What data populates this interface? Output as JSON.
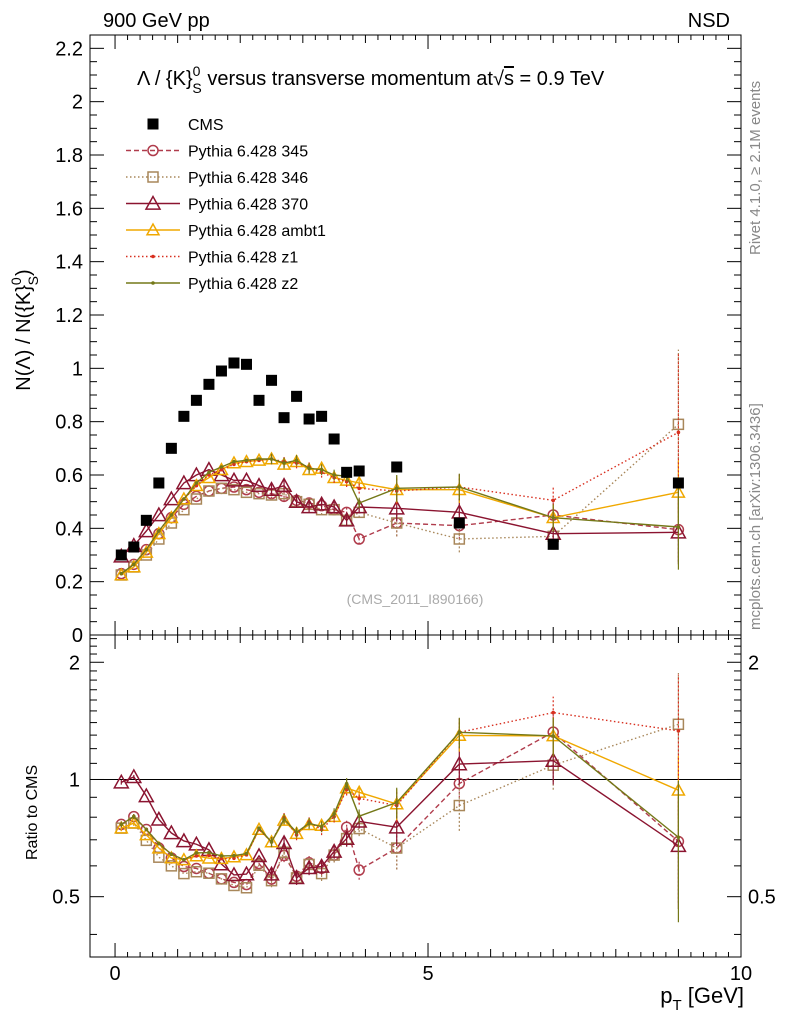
{
  "header": {
    "left": "900 GeV pp",
    "right": "NSD"
  },
  "side_labels": {
    "rivet": "Rivet 4.1.0, ≥ 2.1M events",
    "mcplots": "mcplots.cern.ch [arXiv:1306.3436]"
  },
  "colors": {
    "cms": "#000000",
    "p345": "#b03c4c",
    "p346": "#a8875a",
    "p370": "#8b1430",
    "ambt1": "#f0a800",
    "z1": "#d83020",
    "z2": "#747818"
  },
  "chart_data": {
    "type": "scatter",
    "title": "Λ / {K}⁰ₛ versus transverse momentum at √s = 0.9 TeV",
    "title_parts": {
      "pre": "Λ / {K}",
      "sup": "0",
      "sub": "S",
      "mid": " versus transverse momentum at",
      "rad": "s",
      "post": " = 0.9 TeV"
    },
    "ylabel_main": "N(Λ)  /  N({K}⁰ₛ)",
    "ylabel_main_parts": {
      "pre": "N(Λ)  /  N({K}",
      "sup": "0",
      "sub": "S",
      "post": ")"
    },
    "ylabel_ratio": "Ratio to CMS",
    "xlabel": "p_T [GeV]",
    "xlabel_parts": {
      "pre": "p",
      "sub": "T",
      "post": " [GeV]"
    },
    "watermark": "(CMS_2011_I890166)",
    "xlim": [
      -0.4,
      10
    ],
    "ylim_main": [
      0,
      2.25
    ],
    "ylim_ratio": [
      0.35,
      2.35
    ],
    "ratio_log": true,
    "x_ticks": [
      "0",
      "5",
      "10"
    ],
    "y_ticks_main": [
      "0",
      "0.2",
      "0.4",
      "0.6",
      "0.8",
      "1",
      "1.2",
      "1.4",
      "1.6",
      "1.8",
      "2",
      "2.2"
    ],
    "y_ticks_ratio": [
      "0.5",
      "1",
      "2"
    ],
    "y_ticks_ratio_right": [
      "0.5",
      "2"
    ],
    "x": [
      0.1,
      0.3,
      0.5,
      0.7,
      0.9,
      1.1,
      1.3,
      1.5,
      1.7,
      1.9,
      2.1,
      2.3,
      2.5,
      2.7,
      2.9,
      3.1,
      3.3,
      3.5,
      3.7,
      3.9,
      4.5,
      5.5,
      7.0,
      9.0
    ],
    "series": [
      {
        "key": "cms",
        "name": "CMS",
        "marker": "square_filled",
        "dash": "none",
        "values": [
          0.3,
          0.33,
          0.43,
          0.57,
          0.7,
          0.82,
          0.88,
          0.94,
          0.99,
          1.02,
          1.015,
          0.88,
          0.955,
          0.815,
          0.895,
          0.81,
          0.82,
          0.735,
          0.61,
          0.615,
          0.63,
          0.42,
          0.34,
          0.57
        ]
      },
      {
        "key": "p345",
        "name": "Pythia 6.428 345",
        "marker": "circle_open",
        "dash": "5,3",
        "values": [
          0.23,
          0.265,
          0.32,
          0.38,
          0.44,
          0.49,
          0.52,
          0.54,
          0.55,
          0.555,
          0.545,
          0.535,
          0.53,
          0.52,
          0.505,
          0.495,
          0.485,
          0.47,
          0.46,
          0.36,
          0.42,
          0.41,
          0.45,
          0.395
        ]
      },
      {
        "key": "p346",
        "name": "Pythia 6.428 346",
        "marker": "square_open",
        "dash": "1.5,2.5",
        "values": [
          0.225,
          0.255,
          0.3,
          0.36,
          0.42,
          0.47,
          0.51,
          0.54,
          0.55,
          0.545,
          0.535,
          0.53,
          0.525,
          0.53,
          0.5,
          0.49,
          0.47,
          0.47,
          0.43,
          0.46,
          0.42,
          0.36,
          0.37,
          0.79
        ]
      },
      {
        "key": "p370",
        "name": "Pythia 6.428 370",
        "marker": "triangle_open",
        "dash": "none",
        "values": [
          0.295,
          0.335,
          0.39,
          0.45,
          0.51,
          0.57,
          0.6,
          0.62,
          0.6,
          0.58,
          0.58,
          0.56,
          0.545,
          0.56,
          0.5,
          0.48,
          0.49,
          0.48,
          0.43,
          0.48,
          0.475,
          0.46,
          0.38,
          0.385
        ]
      },
      {
        "key": "ambt1",
        "name": "Pythia 6.428 ambt1",
        "marker": "triangle_open",
        "dash": "none",
        "values": [
          0.225,
          0.255,
          0.31,
          0.38,
          0.44,
          0.51,
          0.56,
          0.59,
          0.62,
          0.645,
          0.65,
          0.655,
          0.66,
          0.64,
          0.65,
          0.62,
          0.625,
          0.59,
          0.58,
          0.57,
          0.545,
          0.545,
          0.44,
          0.535
        ]
      },
      {
        "key": "z1",
        "name": "Pythia 6.428 z1",
        "marker": "dot",
        "dash": "1.5,2.5",
        "values": [
          0.23,
          0.265,
          0.32,
          0.39,
          0.45,
          0.51,
          0.56,
          0.6,
          0.62,
          0.64,
          0.65,
          0.655,
          0.66,
          0.65,
          0.645,
          0.63,
          0.61,
          0.59,
          0.575,
          0.55,
          0.54,
          0.555,
          0.505,
          0.76
        ]
      },
      {
        "key": "z2",
        "name": "Pythia 6.428 z2",
        "marker": "dot",
        "dash": "none",
        "values": [
          0.23,
          0.265,
          0.32,
          0.39,
          0.45,
          0.51,
          0.57,
          0.61,
          0.63,
          0.65,
          0.655,
          0.66,
          0.66,
          0.645,
          0.655,
          0.625,
          0.62,
          0.6,
          0.595,
          0.495,
          0.55,
          0.555,
          0.44,
          0.405
        ]
      }
    ],
    "mc_errors": {
      "p346_last": 0.28,
      "z1_last": 0.3,
      "z2_last": 0.16,
      "high_pt": 0.05
    }
  }
}
